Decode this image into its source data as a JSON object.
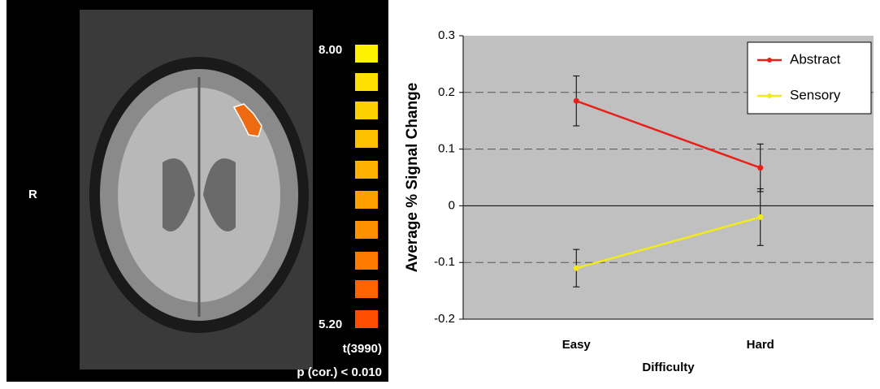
{
  "brain_panel": {
    "side_label": "R",
    "scale_max": "8.00",
    "scale_min": "5.20",
    "stat": "t(3990)",
    "threshold": "p (cor.) < 0.010"
  },
  "chart_data": {
    "type": "line",
    "categories": [
      "Easy",
      "Hard"
    ],
    "series": [
      {
        "name": "Abstract",
        "color": "#e8201c",
        "values": [
          0.185,
          0.067
        ],
        "errors": [
          0.044,
          0.042
        ]
      },
      {
        "name": "Sensory",
        "color": "#f2ea1c",
        "values": [
          -0.11,
          -0.02
        ],
        "errors": [
          0.033,
          0.05
        ]
      }
    ],
    "x_label": "Difficulty",
    "y_label": "Average % Signal Change",
    "ylim": [
      -0.2,
      0.3
    ],
    "yticks": [
      -0.2,
      -0.1,
      0,
      0.1,
      0.2,
      0.3
    ],
    "grid": true,
    "legend": "upper right"
  }
}
